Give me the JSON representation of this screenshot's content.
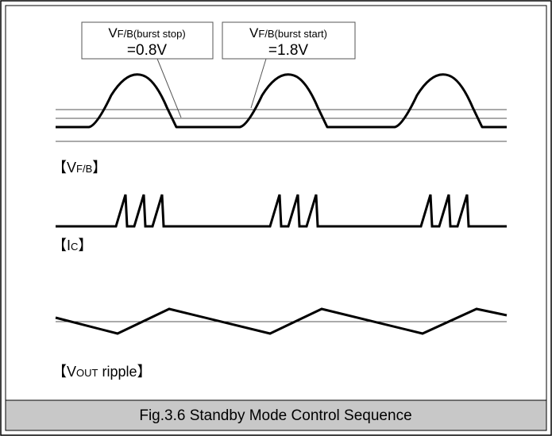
{
  "callouts": [
    {
      "label": [
        "V",
        "F/B",
        "(burst stop)"
      ],
      "value": "=0.8V"
    },
    {
      "label": [
        "V",
        "F/B",
        "(burst start)"
      ],
      "value": "=1.8V"
    }
  ],
  "signals": [
    {
      "label": [
        "【V",
        "F/B",
        "】"
      ]
    },
    {
      "label": [
        "【I",
        "C",
        "】"
      ]
    },
    {
      "label": [
        "【V",
        "OUT",
        " ripple】"
      ]
    }
  ],
  "caption": "Fig.3.6 Standby Mode Control Sequence"
}
